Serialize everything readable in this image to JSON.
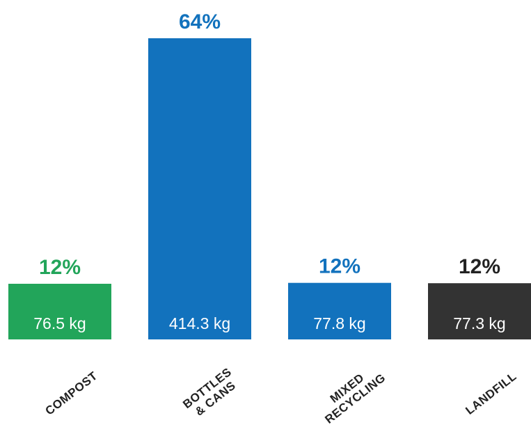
{
  "chart_data": {
    "type": "bar",
    "title": "",
    "xlabel": "",
    "ylabel": "",
    "categories": [
      {
        "lines": [
          "COMPOST"
        ]
      },
      {
        "lines": [
          "BOTTLES",
          "& CANS"
        ]
      },
      {
        "lines": [
          "MIXED",
          "RECYCLING"
        ]
      },
      {
        "lines": [
          "LANDFILL"
        ]
      }
    ],
    "values": [
      76.5,
      414.3,
      77.8,
      77.3
    ],
    "value_labels": [
      "76.5 kg",
      "414.3 kg",
      "77.8 kg",
      "77.3 kg"
    ],
    "unit": "kg",
    "percent_labels": [
      "12%",
      "64%",
      "12%",
      "12%"
    ],
    "colors": [
      "#22a55a",
      "#1272bd",
      "#1272bd",
      "#333333"
    ],
    "percent_label_colors": [
      "#22a55a",
      "#1272bd",
      "#1272bd",
      "#222222"
    ],
    "ylim": [
      0,
      414.3
    ],
    "grid": false,
    "legend": "none"
  }
}
